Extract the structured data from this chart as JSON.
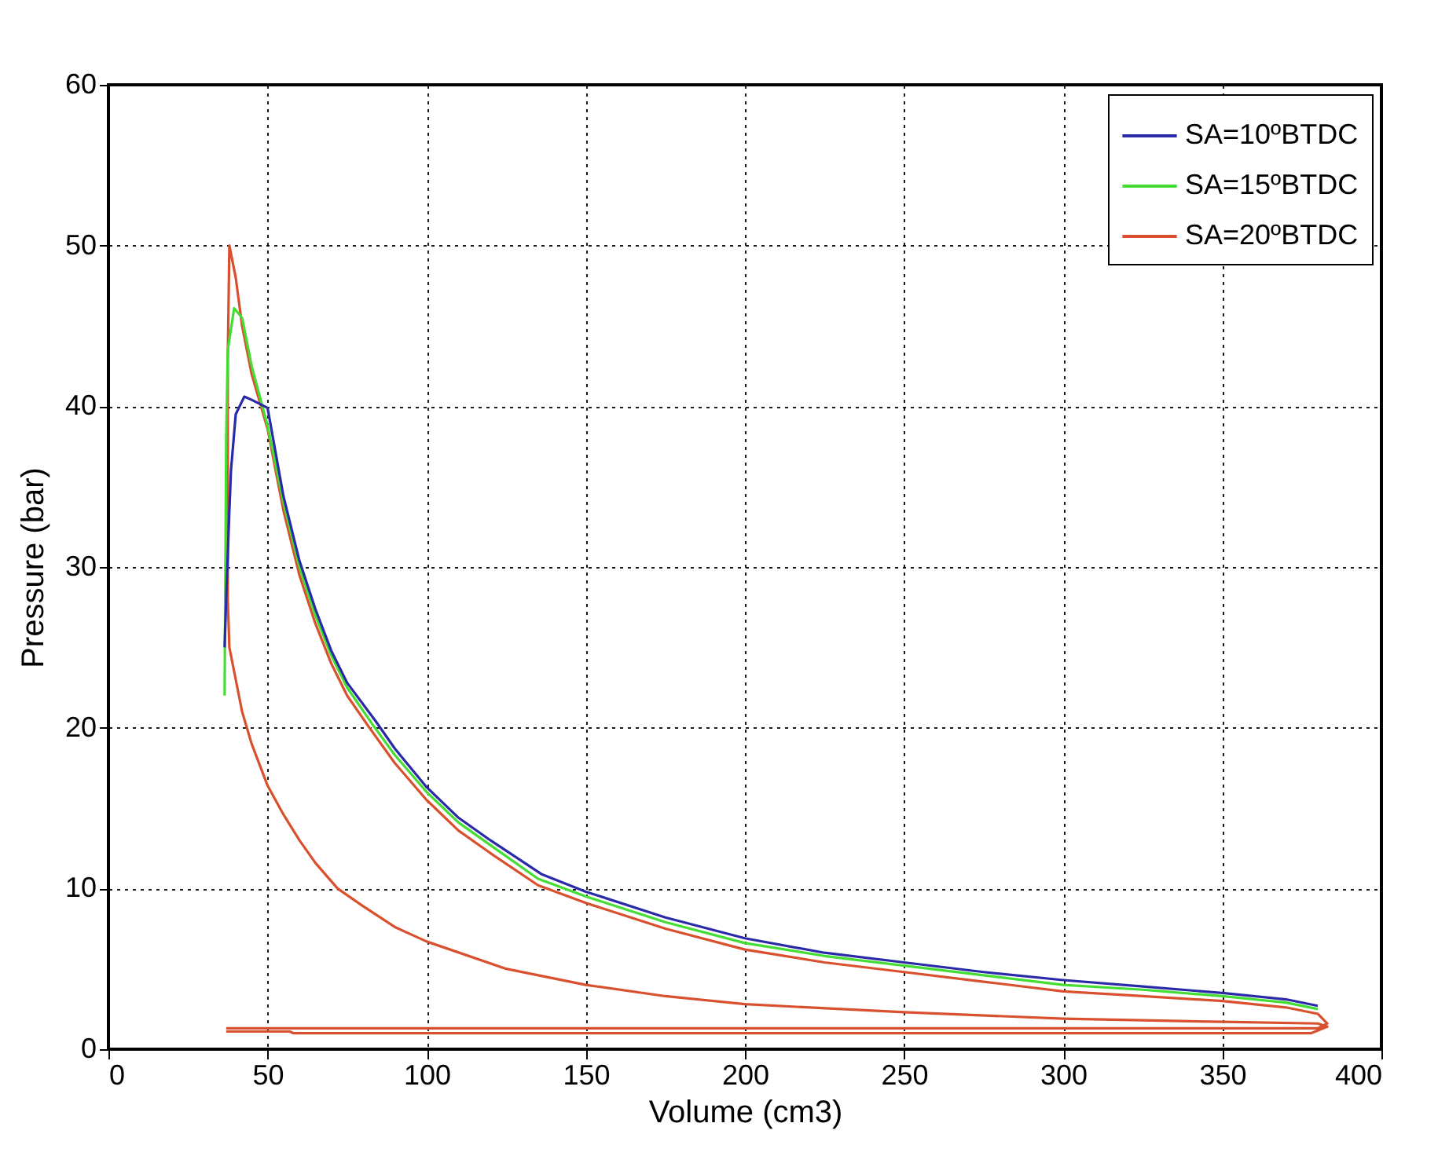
{
  "chart_data": {
    "type": "line",
    "xlabel": "Volume (cm3)",
    "ylabel": "Pressure (bar)",
    "xlim": [
      0,
      400
    ],
    "xticks": [
      0,
      50,
      100,
      150,
      200,
      250,
      300,
      350,
      400
    ],
    "ylim": [
      0,
      60
    ],
    "yticks": [
      0,
      10,
      20,
      30,
      40,
      50,
      60
    ],
    "grid": true,
    "legend": "top right",
    "line_style": "solid",
    "marker": "none",
    "series": [
      {
        "name": "SA=10ºBTDC",
        "color": "#2a2aa8",
        "x": [
          36.5,
          37,
          38,
          38.5,
          40,
          42.7,
          45,
          50,
          55,
          60,
          65,
          70,
          75,
          84,
          90,
          100,
          110,
          120,
          136,
          150,
          175,
          200,
          225,
          250,
          275,
          300,
          325,
          350,
          370,
          380
        ],
        "values": [
          25,
          28,
          33.5,
          36,
          39.5,
          40.6,
          40.4,
          39.9,
          34.4,
          30.4,
          27.4,
          24.8,
          22.8,
          20.4,
          18.7,
          16.3,
          14.4,
          13,
          10.9,
          9.8,
          8.2,
          6.9,
          6.0,
          5.4,
          4.8,
          4.3,
          3.9,
          3.5,
          3.1,
          2.7
        ]
      },
      {
        "name": "SA=15ºBTDC",
        "color": "#44dd33",
        "x": [
          36.5,
          37,
          37.5,
          39.5,
          42,
          45,
          50,
          55,
          60,
          65,
          70,
          75,
          83,
          90,
          100,
          110,
          120,
          135,
          150,
          175,
          200,
          225,
          250,
          275,
          300,
          325,
          350,
          370,
          380
        ],
        "values": [
          22,
          38,
          43.5,
          46.1,
          45.5,
          42.5,
          38.8,
          34.0,
          30.0,
          27.0,
          24.5,
          22.5,
          20.2,
          18.3,
          16.0,
          14.1,
          12.7,
          10.6,
          9.5,
          7.9,
          6.6,
          5.8,
          5.2,
          4.6,
          4.0,
          3.7,
          3.3,
          2.9,
          2.5
        ]
      },
      {
        "name": "SA=20ºBTDC",
        "color": "#d9502e",
        "x": [
          37,
          57,
          58,
          378,
          383,
          380,
          350,
          300,
          250,
          200,
          175,
          150,
          125,
          100,
          90,
          80,
          72,
          65,
          60,
          55,
          50,
          45,
          42,
          40,
          38,
          37.5,
          37.5,
          38,
          40,
          42,
          45,
          50,
          55,
          60,
          65,
          70,
          75,
          82,
          90,
          100,
          110,
          120,
          135,
          150,
          175,
          200,
          225,
          250,
          275,
          300,
          325,
          350,
          370,
          380,
          383,
          380,
          300,
          200,
          100,
          37
        ],
        "values": [
          1.1,
          1.1,
          1.0,
          1.0,
          1.4,
          1.6,
          1.7,
          1.9,
          2.3,
          2.8,
          3.3,
          4.0,
          5.0,
          6.7,
          7.6,
          8.9,
          10,
          11.6,
          13,
          14.6,
          16.4,
          19,
          21,
          23,
          25,
          28,
          43,
          50,
          48,
          45,
          42,
          38.6,
          33.5,
          29.5,
          26.5,
          24,
          22,
          20,
          17.8,
          15.5,
          13.6,
          12.2,
          10.2,
          9.1,
          7.5,
          6.2,
          5.4,
          4.8,
          4.2,
          3.6,
          3.3,
          3.0,
          2.6,
          2.2,
          1.6,
          1.3,
          1.3,
          1.3,
          1.3,
          1.3
        ]
      }
    ]
  }
}
